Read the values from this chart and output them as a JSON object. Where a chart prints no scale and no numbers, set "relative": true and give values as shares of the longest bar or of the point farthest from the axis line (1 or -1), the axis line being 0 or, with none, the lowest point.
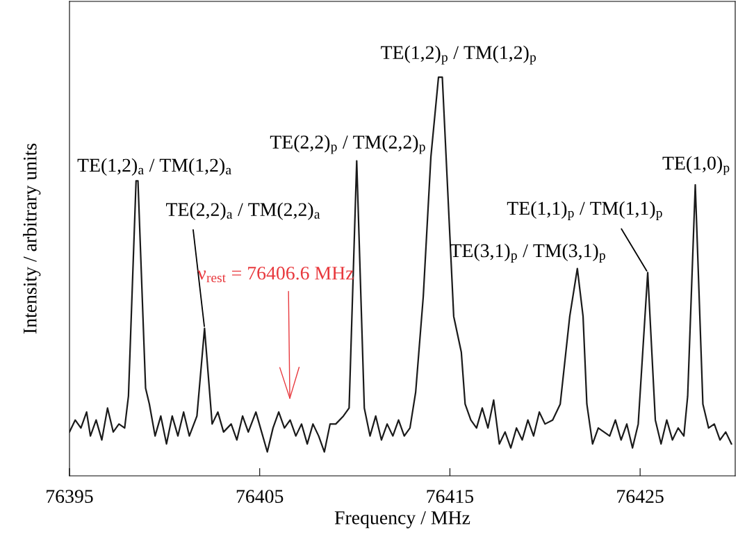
{
  "chart_data": {
    "type": "line",
    "relative": true,
    "xlabel": "Frequency / MHz",
    "ylabel": "Intensity / arbitrary units",
    "xlim": [
      76395,
      76430
    ],
    "xticks": [
      76395,
      76405,
      76415,
      76425
    ],
    "grid": false,
    "legend": false,
    "marker": "none",
    "line_style": "solid",
    "series": [
      {
        "color": "#1a1a1a",
        "x": [
          76395.0,
          76395.3,
          76395.6,
          76395.9,
          76396.1,
          76396.4,
          76396.7,
          76397.0,
          76397.3,
          76397.6,
          76397.9,
          76398.1,
          76398.5,
          76398.6,
          76399.0,
          76399.2,
          76399.5,
          76399.8,
          76400.1,
          76400.4,
          76400.7,
          76401.0,
          76401.3,
          76401.7,
          76402.1,
          76402.5,
          76402.8,
          76403.1,
          76403.5,
          76403.8,
          76404.1,
          76404.4,
          76404.8,
          76405.1,
          76405.4,
          76405.7,
          76406.0,
          76406.3,
          76406.6,
          76406.9,
          76407.2,
          76407.5,
          76407.8,
          76408.1,
          76408.4,
          76408.7,
          76409.0,
          76409.4,
          76409.7,
          76410.1,
          76410.5,
          76410.8,
          76411.1,
          76411.4,
          76411.7,
          76412.0,
          76412.3,
          76412.6,
          76412.9,
          76413.2,
          76413.6,
          76414.0,
          76414.4,
          76414.6,
          76415.0,
          76415.2,
          76415.6,
          76415.8,
          76416.1,
          76416.4,
          76416.7,
          76417.0,
          76417.3,
          76417.6,
          76417.9,
          76418.2,
          76418.5,
          76418.8,
          76419.1,
          76419.4,
          76419.7,
          76420.0,
          76420.4,
          76420.8,
          76421.3,
          76421.7,
          76422.0,
          76422.2,
          76422.5,
          76422.8,
          76423.1,
          76423.4,
          76423.7,
          76424.0,
          76424.3,
          76424.6,
          76424.9,
          76425.4,
          76425.8,
          76426.1,
          76426.4,
          76426.7,
          76427.0,
          76427.3,
          76427.5,
          76427.9,
          76428.3,
          76428.6,
          76428.9,
          76429.2,
          76429.5,
          76429.8
        ],
        "values": [
          0.11,
          0.14,
          0.12,
          0.16,
          0.1,
          0.14,
          0.09,
          0.17,
          0.11,
          0.13,
          0.12,
          0.2,
          0.74,
          0.74,
          0.22,
          0.18,
          0.1,
          0.15,
          0.08,
          0.15,
          0.1,
          0.16,
          0.1,
          0.15,
          0.37,
          0.13,
          0.16,
          0.11,
          0.13,
          0.09,
          0.15,
          0.11,
          0.16,
          0.11,
          0.06,
          0.12,
          0.16,
          0.12,
          0.14,
          0.1,
          0.13,
          0.08,
          0.13,
          0.1,
          0.06,
          0.13,
          0.13,
          0.15,
          0.17,
          0.79,
          0.17,
          0.1,
          0.15,
          0.09,
          0.13,
          0.1,
          0.14,
          0.1,
          0.12,
          0.21,
          0.45,
          0.8,
          1.0,
          1.0,
          0.6,
          0.4,
          0.31,
          0.18,
          0.14,
          0.12,
          0.17,
          0.12,
          0.19,
          0.08,
          0.11,
          0.07,
          0.12,
          0.09,
          0.14,
          0.1,
          0.16,
          0.13,
          0.14,
          0.18,
          0.4,
          0.52,
          0.4,
          0.18,
          0.08,
          0.12,
          0.11,
          0.1,
          0.14,
          0.09,
          0.13,
          0.07,
          0.13,
          0.51,
          0.14,
          0.08,
          0.14,
          0.09,
          0.12,
          0.1,
          0.2,
          0.73,
          0.18,
          0.12,
          0.13,
          0.09,
          0.11,
          0.08
        ]
      }
    ],
    "annotations": [
      {
        "text": "TE(1,2)$_{a}$ / TM(1,2)$_{a}$",
        "x": 76398.5,
        "y": 0.74
      },
      {
        "text": "TE(2,2)$_{a}$ / TM(2,2)$_{a}$",
        "x": 76402.1,
        "y": 0.37
      },
      {
        "text": "TE(2,2)$_{p}$ / TM(2,2)$_{p}$",
        "x": 76410.1,
        "y": 0.79
      },
      {
        "text": "TE(1,2)$_{p}$ / TM(1,2)$_{p}$",
        "x": 76414.6,
        "y": 1.0
      },
      {
        "text": "TE(3,1)$_{p}$ / TM(3,1)$_{p}$",
        "x": 76421.7,
        "y": 0.52
      },
      {
        "text": "TE(1,1)$_{p}$ / TM(1,1)$_{p}$",
        "x": 76425.4,
        "y": 0.51
      },
      {
        "text": "TE(1,0)$_{p}$",
        "x": 76427.9,
        "y": 0.73
      },
      "ν$_{rest}$ = 76406.6 MHz"
    ]
  }
}
